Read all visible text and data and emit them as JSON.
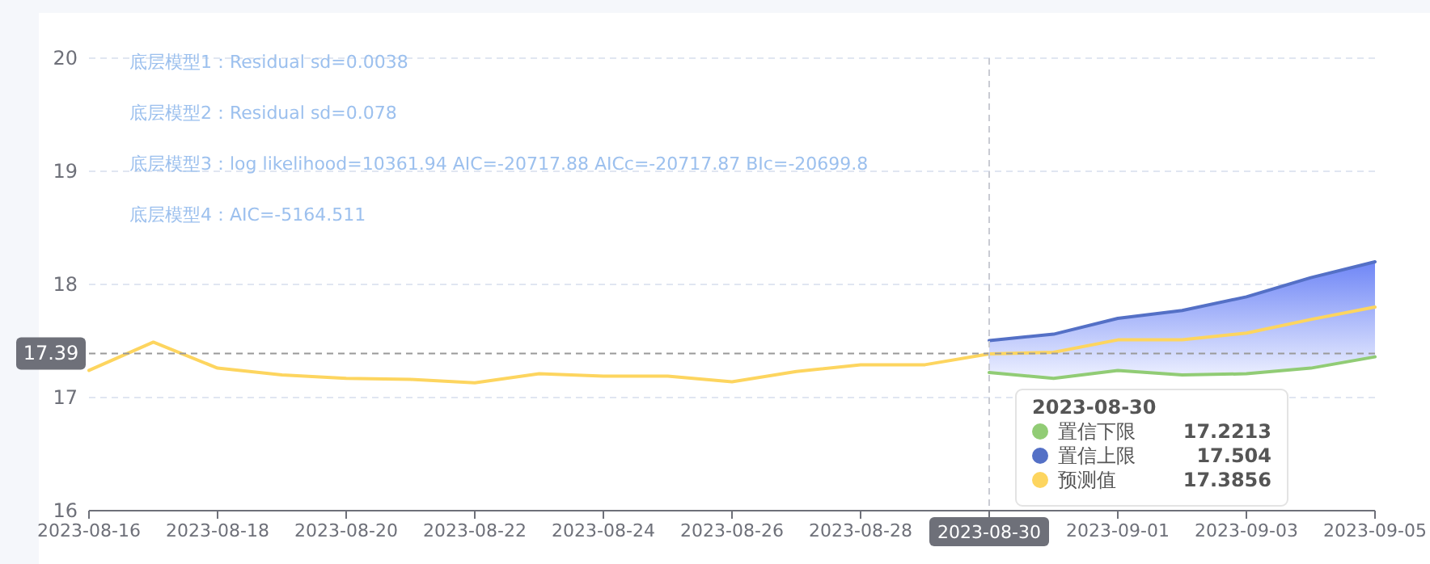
{
  "chart_data": {
    "type": "line",
    "x": [
      "2023-08-16",
      "2023-08-17",
      "2023-08-18",
      "2023-08-19",
      "2023-08-20",
      "2023-08-21",
      "2023-08-22",
      "2023-08-23",
      "2023-08-24",
      "2023-08-25",
      "2023-08-26",
      "2023-08-27",
      "2023-08-28",
      "2023-08-29",
      "2023-08-30",
      "2023-08-31",
      "2023-09-01",
      "2023-09-02",
      "2023-09-03",
      "2023-09-04",
      "2023-09-05"
    ],
    "series": [
      {
        "name": "置信下限",
        "color": "#91cc75",
        "x": [
          "2023-08-30",
          "2023-08-31",
          "2023-09-01",
          "2023-09-02",
          "2023-09-03",
          "2023-09-04",
          "2023-09-05"
        ],
        "values": [
          17.2213,
          17.17,
          17.24,
          17.2,
          17.21,
          17.26,
          17.36
        ]
      },
      {
        "name": "置信上限",
        "type": "area",
        "color": "#5470c6",
        "x": [
          "2023-08-30",
          "2023-08-31",
          "2023-09-01",
          "2023-09-02",
          "2023-09-03",
          "2023-09-04",
          "2023-09-05"
        ],
        "values": [
          17.504,
          17.56,
          17.7,
          17.77,
          17.89,
          18.06,
          18.2
        ]
      },
      {
        "name": "预测值",
        "color": "#fdd55f",
        "values": [
          17.24,
          17.49,
          17.26,
          17.2,
          17.17,
          17.16,
          17.13,
          17.21,
          17.19,
          17.19,
          17.14,
          17.23,
          17.29,
          17.29,
          17.3856,
          17.4,
          17.51,
          17.51,
          17.57,
          17.69,
          17.8
        ]
      }
    ],
    "xlim": [
      "2023-08-16",
      "2023-09-05"
    ],
    "xticks": [
      "2023-08-16",
      "2023-08-18",
      "2023-08-20",
      "2023-08-22",
      "2023-08-24",
      "2023-08-26",
      "2023-08-28",
      "2023-08-30",
      "2023-09-01",
      "2023-09-03",
      "2023-09-05"
    ],
    "ylim": [
      16,
      20
    ],
    "yticks": [
      16,
      17,
      18,
      19,
      20
    ],
    "grid": "y",
    "legend": "bottom right",
    "ref_lines": [
      {
        "axis": "y",
        "value": 17.39,
        "label": "17.39"
      },
      {
        "axis": "x",
        "value": "2023-08-30",
        "label": "2023-08-30"
      }
    ],
    "annotations": [
      "底层模型1：Residual sd=0.0038",
      "底层模型2：Residual sd=0.078",
      "底层模型3：log likelihood=10361.94 AIC=-20717.88 AICc=-20717.87 BIc=-20699.8",
      "底层模型4：AIC=-5164.511",
      "2023-08-30",
      "17.2213",
      "17.504",
      "17.3856"
    ]
  }
}
